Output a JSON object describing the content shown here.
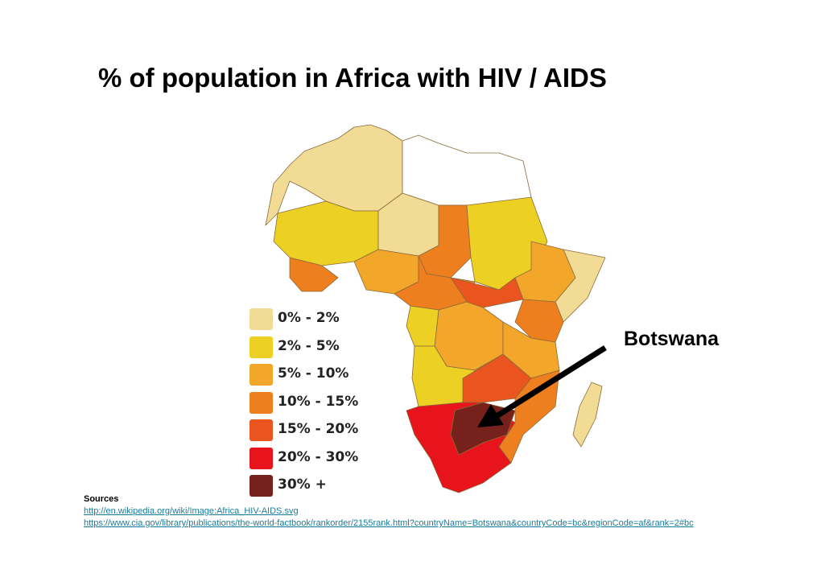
{
  "title": "% of population in Africa with HIV / AIDS",
  "legend": {
    "items": [
      {
        "label": "0% - 2%",
        "color": "#f2dc95"
      },
      {
        "label": "2% - 5%",
        "color": "#ecd124"
      },
      {
        "label": "5% - 10%",
        "color": "#f2a62a"
      },
      {
        "label": "10% - 15%",
        "color": "#ee7f1f"
      },
      {
        "label": "15% - 20%",
        "color": "#e9541f"
      },
      {
        "label": "20% - 30%",
        "color": "#e7141b"
      },
      {
        "label": "30% +",
        "color": "#76211b"
      }
    ]
  },
  "callout": {
    "label": "Botswana"
  },
  "sources": {
    "heading": "Sources",
    "links": [
      "http://en.wikipedia.org/wiki/Image:Africa_HIV-AIDS.svg",
      "https://www.cia.gov/library/publications/the-world-factbook/rankorder/2155rank.html?countryName=Botswana&countryCode=bc&regionCode=af&rank=2#bc"
    ]
  }
}
